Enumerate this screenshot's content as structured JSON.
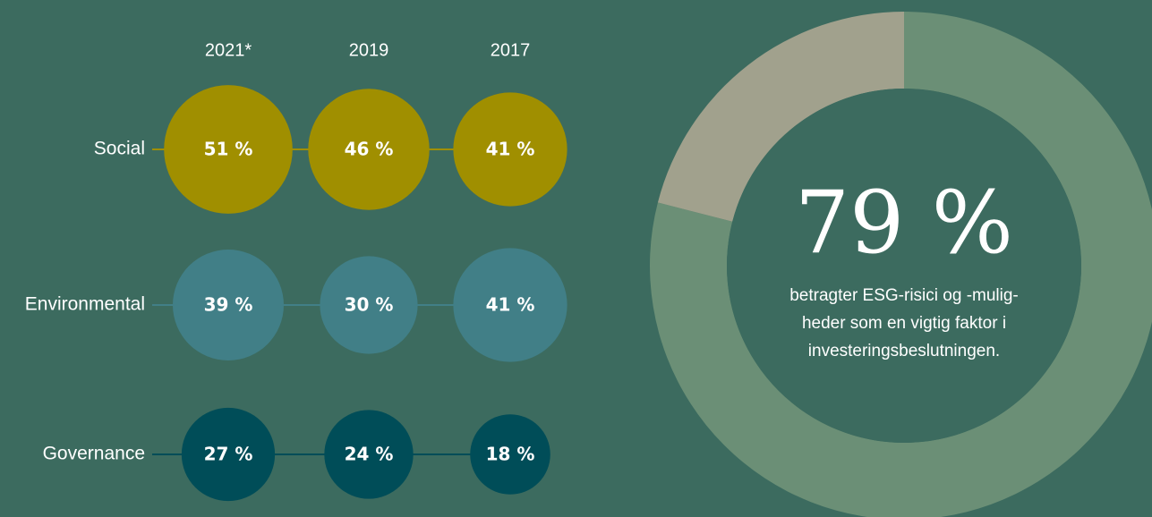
{
  "chart_data": [
    {
      "type": "bubble-grid",
      "categories": [
        "2021*",
        "2019",
        "2017"
      ],
      "series": [
        {
          "name": "Social",
          "color": "#a08f00",
          "values": [
            51,
            46,
            41
          ],
          "value_labels": [
            "51 %",
            "46 %",
            "41 %"
          ]
        },
        {
          "name": "Environmental",
          "color": "#417f87",
          "values": [
            39,
            30,
            41
          ],
          "value_labels": [
            "39 %",
            "30 %",
            "41 %"
          ]
        },
        {
          "name": "Governance",
          "color": "#004d58",
          "values": [
            27,
            24,
            18
          ],
          "value_labels": [
            "27 %",
            "24 %",
            "18 %"
          ]
        }
      ]
    },
    {
      "type": "donut",
      "values": [
        79,
        21
      ],
      "value_labels": [
        "79 %",
        null
      ],
      "colors": [
        "#6b8f76",
        "#a1a18d"
      ],
      "description": [
        "betragter ESG-risici og -mulig-",
        "heder som en vigtig faktor i",
        "investeringsbeslutningen."
      ]
    }
  ]
}
